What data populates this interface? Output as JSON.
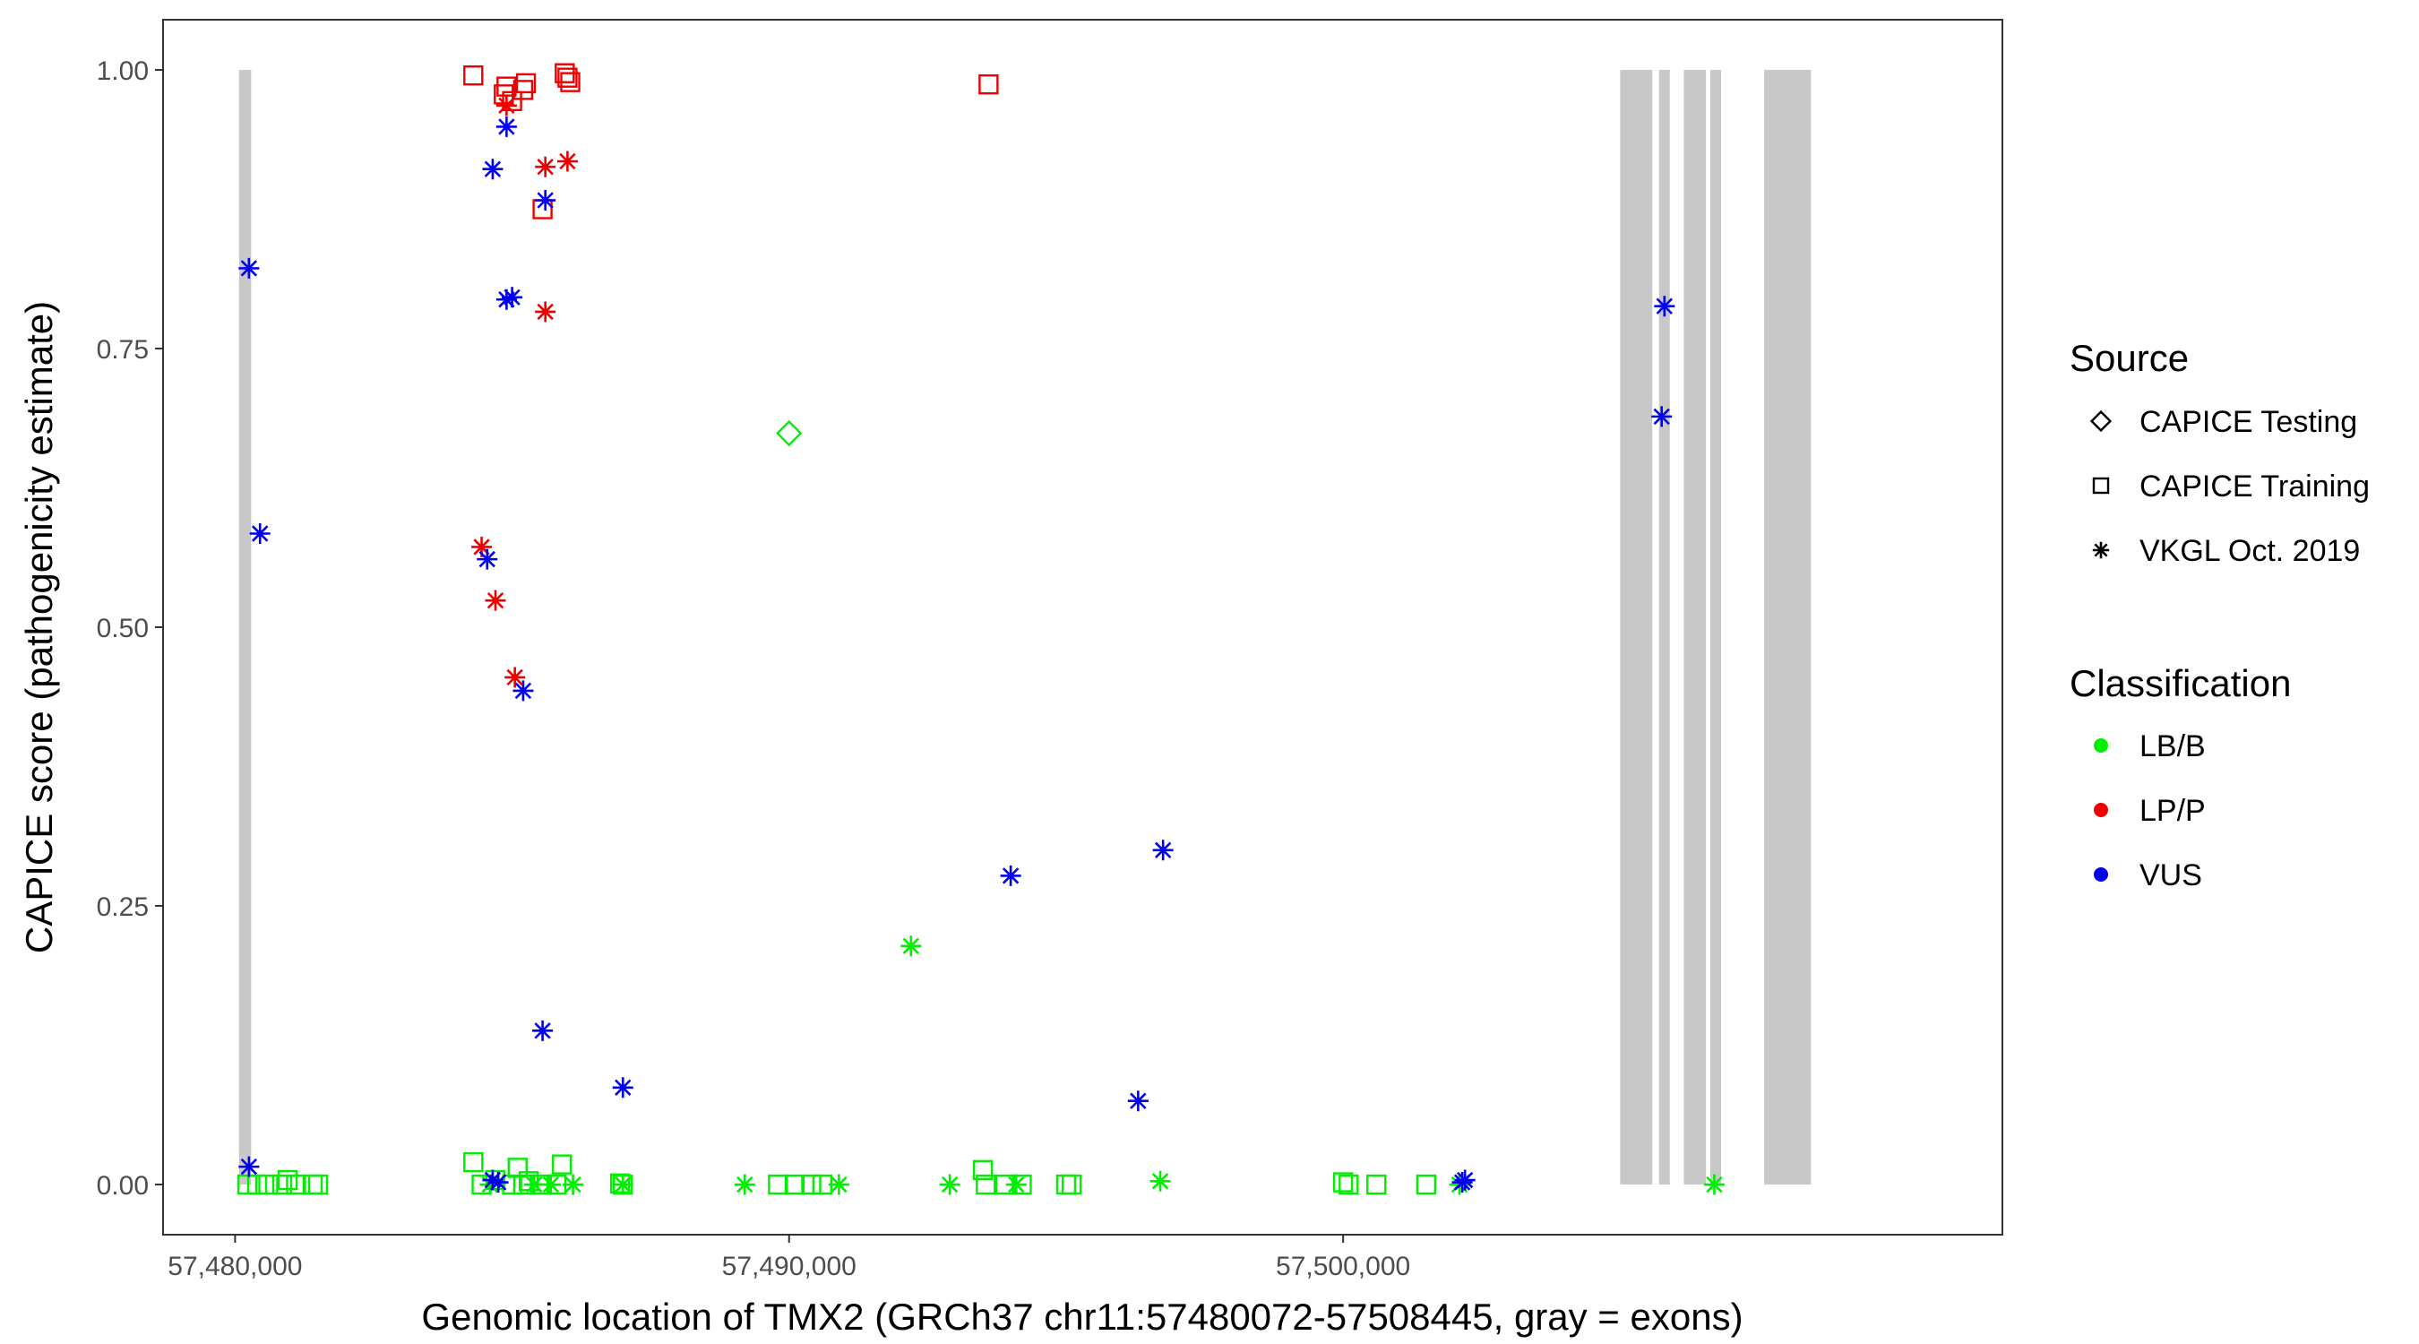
{
  "chart_data": {
    "type": "scatter",
    "title": "",
    "xlabel": "Genomic location of TMX2 (GRCh37 chr11:57480072-57508445, gray = exons)",
    "ylabel": "CAPICE score (pathogenicity estimate)",
    "xlim": [
      57478700,
      57511900
    ],
    "ylim": [
      -0.045,
      1.045
    ],
    "x_ticks": [
      {
        "value": 57480000,
        "label": "57,480,000"
      },
      {
        "value": 57490000,
        "label": "57,490,000"
      },
      {
        "value": 57500000,
        "label": "57,500,000"
      }
    ],
    "y_ticks": [
      {
        "value": 0.0,
        "label": "0.00"
      },
      {
        "value": 0.25,
        "label": "0.25"
      },
      {
        "value": 0.5,
        "label": "0.50"
      },
      {
        "value": 0.75,
        "label": "0.75"
      },
      {
        "value": 1.0,
        "label": "1.00"
      }
    ],
    "grid": false,
    "exon_color": "#c8c8c8",
    "exons": [
      [
        57480072,
        57480290
      ],
      [
        57505000,
        57505580
      ],
      [
        57505750,
        57505850
      ],
      [
        57506150,
        57506550
      ],
      [
        57506650,
        57506800
      ],
      [
        57507600,
        57508445
      ]
    ],
    "legend": {
      "placement": "right",
      "source": {
        "title": "Source",
        "entries": [
          {
            "label": "CAPICE Testing",
            "shape": "diamond"
          },
          {
            "label": "CAPICE Training",
            "shape": "square"
          },
          {
            "label": "VKGL Oct. 2019",
            "shape": "asterisk"
          }
        ]
      },
      "classification": {
        "title": "Classification",
        "entries": [
          {
            "label": "LB/B",
            "color": "#00ee00"
          },
          {
            "label": "LP/P",
            "color": "#ee0000"
          },
          {
            "label": "VUS",
            "color": "#0000ee"
          }
        ]
      }
    },
    "series": [
      {
        "source": "CAPICE Testing",
        "classification": "LB/B",
        "points": [
          [
            57490000,
            0.674
          ]
        ]
      },
      {
        "source": "CAPICE Training",
        "classification": "LB/B",
        "points": [
          [
            57480220,
            0.0
          ],
          [
            57480400,
            0.0
          ],
          [
            57480600,
            0.0
          ],
          [
            57480850,
            0.0
          ],
          [
            57480950,
            0.004
          ],
          [
            57481100,
            0.0
          ],
          [
            57481400,
            0.0
          ],
          [
            57481500,
            0.0
          ],
          [
            57484300,
            0.02
          ],
          [
            57484450,
            0.0
          ],
          [
            57484700,
            0.004
          ],
          [
            57485000,
            0.0
          ],
          [
            57485100,
            0.015
          ],
          [
            57485200,
            0.0
          ],
          [
            57485300,
            0.003
          ],
          [
            57485500,
            0.0
          ],
          [
            57485800,
            0.0
          ],
          [
            57485900,
            0.018
          ],
          [
            57486950,
            0.001
          ],
          [
            57487000,
            0.0
          ],
          [
            57489800,
            0.0
          ],
          [
            57490100,
            0.0
          ],
          [
            57490400,
            0.0
          ],
          [
            57490600,
            0.0
          ],
          [
            57493500,
            0.013
          ],
          [
            57493550,
            0.0
          ],
          [
            57493900,
            0.0
          ],
          [
            57494200,
            0.0
          ],
          [
            57495000,
            0.0
          ],
          [
            57495100,
            0.0
          ],
          [
            57500000,
            0.002
          ],
          [
            57500100,
            0.0
          ],
          [
            57500600,
            0.0
          ],
          [
            57501500,
            0.0
          ]
        ]
      },
      {
        "source": "VKGL Oct. 2019",
        "classification": "LB/B",
        "points": [
          [
            57484600,
            0.0
          ],
          [
            57485400,
            0.0
          ],
          [
            57485700,
            0.0
          ],
          [
            57486100,
            0.0
          ],
          [
            57487000,
            0.0
          ],
          [
            57489200,
            0.0
          ],
          [
            57490900,
            0.0
          ],
          [
            57492200,
            0.214
          ],
          [
            57492900,
            0.0
          ],
          [
            57494100,
            0.0
          ],
          [
            57496700,
            0.003
          ],
          [
            57502100,
            0.0
          ],
          [
            57506700,
            0.0
          ]
        ]
      },
      {
        "source": "CAPICE Training",
        "classification": "LP/P",
        "points": [
          [
            57484300,
            0.995
          ],
          [
            57484850,
            0.978
          ],
          [
            57484900,
            0.985
          ],
          [
            57485000,
            0.972
          ],
          [
            57485200,
            0.982
          ],
          [
            57485250,
            0.988
          ],
          [
            57485550,
            0.875
          ],
          [
            57485950,
            0.997
          ],
          [
            57486000,
            0.993
          ],
          [
            57486050,
            0.989
          ],
          [
            57493600,
            0.987
          ]
        ]
      },
      {
        "source": "VKGL Oct. 2019",
        "classification": "LP/P",
        "points": [
          [
            57484900,
            0.968
          ],
          [
            57485600,
            0.913
          ],
          [
            57486000,
            0.918
          ],
          [
            57485600,
            0.783
          ],
          [
            57484450,
            0.572
          ],
          [
            57484700,
            0.524
          ],
          [
            57485050,
            0.455
          ]
        ]
      },
      {
        "source": "VKGL Oct. 2019",
        "classification": "VUS",
        "points": [
          [
            57480250,
            0.822
          ],
          [
            57480450,
            0.584
          ],
          [
            57480250,
            0.016
          ],
          [
            57484650,
            0.911
          ],
          [
            57484900,
            0.949
          ],
          [
            57485600,
            0.883
          ],
          [
            57484900,
            0.794
          ],
          [
            57485000,
            0.796
          ],
          [
            57484550,
            0.561
          ],
          [
            57485200,
            0.443
          ],
          [
            57484650,
            0.004
          ],
          [
            57484750,
            0.002
          ],
          [
            57485550,
            0.138
          ],
          [
            57487000,
            0.087
          ],
          [
            57494000,
            0.277
          ],
          [
            57496750,
            0.3
          ],
          [
            57496300,
            0.075
          ],
          [
            57502200,
            0.004
          ],
          [
            57502150,
            0.002
          ],
          [
            57505800,
            0.788
          ],
          [
            57505750,
            0.689
          ]
        ]
      }
    ]
  }
}
